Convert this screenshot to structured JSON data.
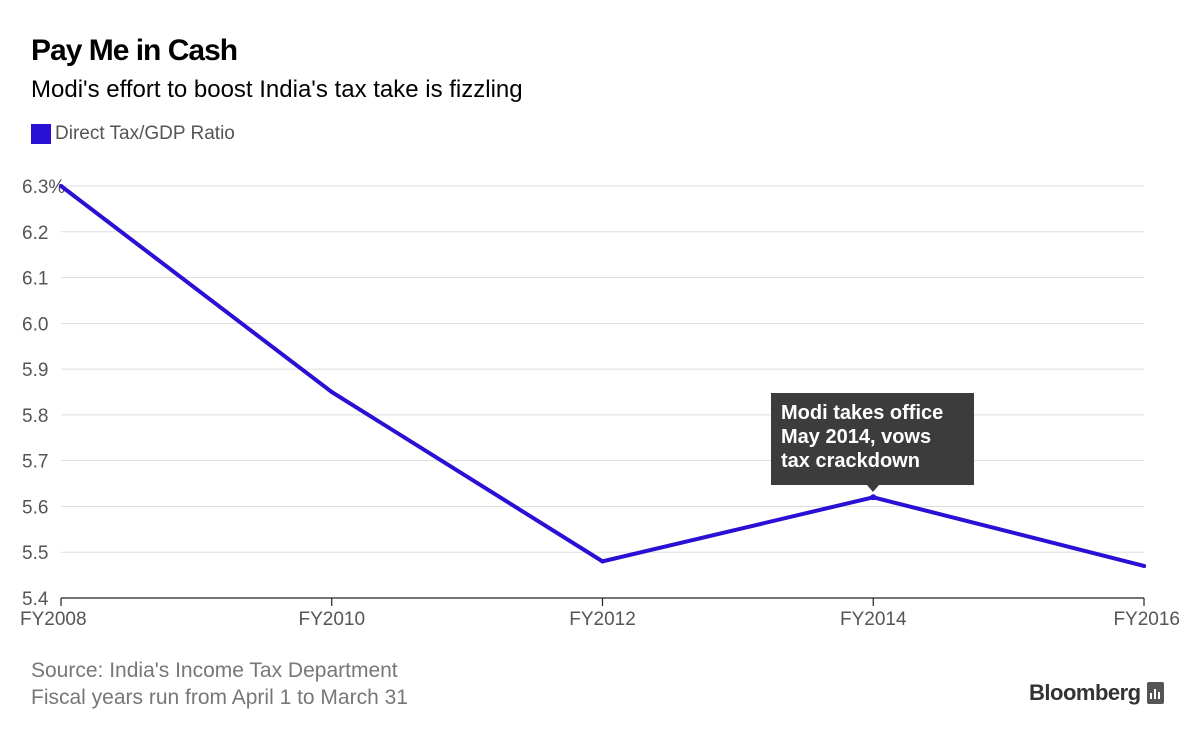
{
  "header": {
    "title": "Pay Me in Cash",
    "subtitle": "Modi's effort to boost India's tax take is fizzling"
  },
  "legend": {
    "label": "Direct Tax/GDP Ratio",
    "color": "#2a0fd4"
  },
  "annotation": {
    "line1": "Modi takes office",
    "line2": "May 2014, vows",
    "line3": "tax crackdown"
  },
  "footer": {
    "source": "Source: India's Income Tax Department",
    "note": "Fiscal years run from April 1 to March 31",
    "brand": "Bloomberg",
    "brand_icon": "bloomberg-chart-icon"
  },
  "chart_data": {
    "type": "line",
    "title": "Pay Me in Cash",
    "subtitle": "Modi's effort to boost India's tax take is fizzling",
    "xlabel": "",
    "ylabel": "",
    "x": [
      2008,
      2010,
      2012,
      2014,
      2016
    ],
    "x_tick_labels": [
      "FY2008",
      "FY2010",
      "FY2012",
      "FY2014",
      "FY2016"
    ],
    "y_ticks": [
      6.3,
      6.2,
      6.1,
      6.0,
      5.9,
      5.8,
      5.7,
      5.6,
      5.5,
      5.4
    ],
    "y_tick_labels": [
      "6.3%",
      "6.2",
      "6.1",
      "6.0",
      "5.9",
      "5.8",
      "5.7",
      "5.6",
      "5.5",
      "5.4"
    ],
    "ylim": [
      5.4,
      6.3
    ],
    "xlim": [
      2008,
      2016
    ],
    "grid": true,
    "series": [
      {
        "name": "Direct Tax/GDP Ratio",
        "color": "#2a0fd4",
        "points": [
          {
            "x": 2008,
            "y": 6.3
          },
          {
            "x": 2010,
            "y": 5.85
          },
          {
            "x": 2012,
            "y": 5.48
          },
          {
            "x": 2014,
            "y": 5.62
          },
          {
            "x": 2016,
            "y": 5.47
          }
        ]
      }
    ],
    "annotations": [
      {
        "x": 2014,
        "y": 5.62,
        "text": "Modi takes office May 2014, vows tax crackdown"
      }
    ]
  }
}
